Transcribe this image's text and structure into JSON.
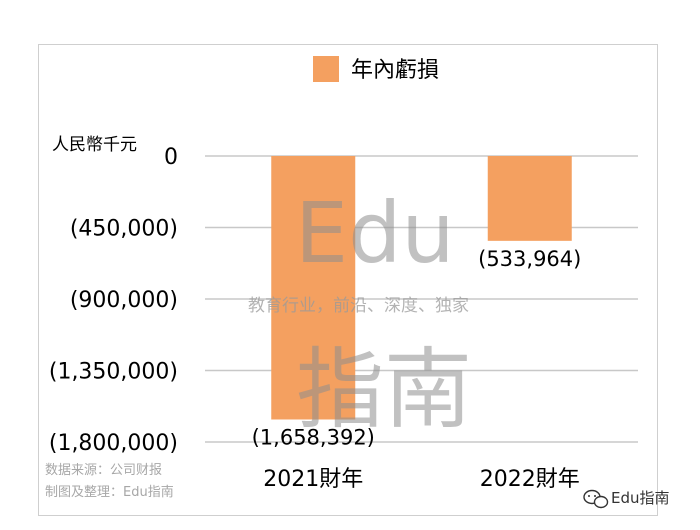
{
  "chart_data": {
    "type": "bar",
    "categories": [
      "2021財年",
      "2022財年"
    ],
    "series": [
      {
        "name": "年內虧損",
        "values": [
          -1658392,
          -533964
        ],
        "color": "#F4A060"
      }
    ],
    "data_labels": [
      "(1,658,392)",
      "(533,964)"
    ],
    "ylabel": "人民幣千元",
    "ylim": [
      -1800000,
      0
    ],
    "yticks": [
      0,
      -450000,
      -900000,
      -1350000,
      -1800000
    ],
    "ytick_labels": [
      "0",
      "(450,000)",
      "(900,000)",
      "(1,350,000)",
      "(1,800,000)"
    ],
    "grid": true,
    "legend_position": "top-center"
  },
  "source_note": {
    "line1": "数据来源：公司财报",
    "line2": "制图及整理：Edu指南"
  },
  "watermark": {
    "top": "Edu",
    "middle": "教育行业，前沿、深度、独家",
    "bottom": "指南"
  },
  "credit": {
    "icon": "wechat-icon",
    "text": "Edu指南"
  }
}
